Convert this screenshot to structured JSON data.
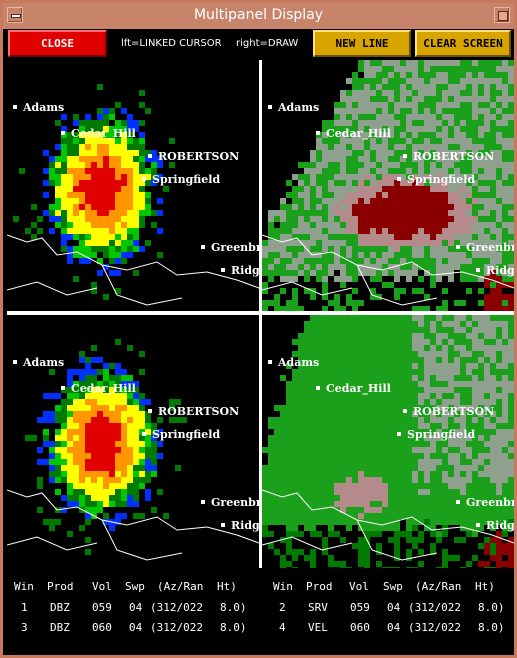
{
  "window": {
    "title": "Multipanel Display"
  },
  "toolbar": {
    "close_label": "CLOSE",
    "hint_left": "lft=LINKED CURSOR",
    "hint_right": "right=DRAW",
    "new_line_label": "NEW LINE",
    "clear_screen_label": "CLEAR SCREEN"
  },
  "map_labels": {
    "adams": "Adams",
    "cedar_hill": "Cedar_Hill",
    "robertson": "ROBERTSON",
    "springfield": "Springfield",
    "greenbrier": "Greenbr",
    "ridgetop": "Ridg"
  },
  "colors": {
    "dbz_blue": "#0030ff",
    "dbz_green": "#00c800",
    "dbz_dkgreen": "#007a00",
    "dbz_yellow": "#ffff00",
    "dbz_orange": "#ff9600",
    "dbz_red": "#e00000",
    "vel_green": "#1aa01a",
    "vel_gray": "#8fa08f",
    "vel_pink": "#b48a8a",
    "vel_dkred": "#8a0000"
  },
  "table": {
    "headers": [
      "Win",
      "Prod",
      "Vol",
      "Swp",
      "(Az/Ran",
      "Ht)"
    ],
    "rows": [
      [
        {
          "win": "1",
          "prod": "DBZ",
          "vol": "059",
          "swp": "04",
          "azran": "(312/022",
          "ht": "8.0)"
        },
        {
          "win": "2",
          "prod": "SRV",
          "vol": "059",
          "swp": "04",
          "azran": "(312/022",
          "ht": "8.0)"
        }
      ],
      [
        {
          "win": "3",
          "prod": "DBZ",
          "vol": "060",
          "swp": "04",
          "azran": "(312/022",
          "ht": "8.0)"
        },
        {
          "win": "4",
          "prod": "VEL",
          "vol": "060",
          "swp": "04",
          "azran": "(312/022",
          "ht": "8.0)"
        }
      ]
    ]
  }
}
